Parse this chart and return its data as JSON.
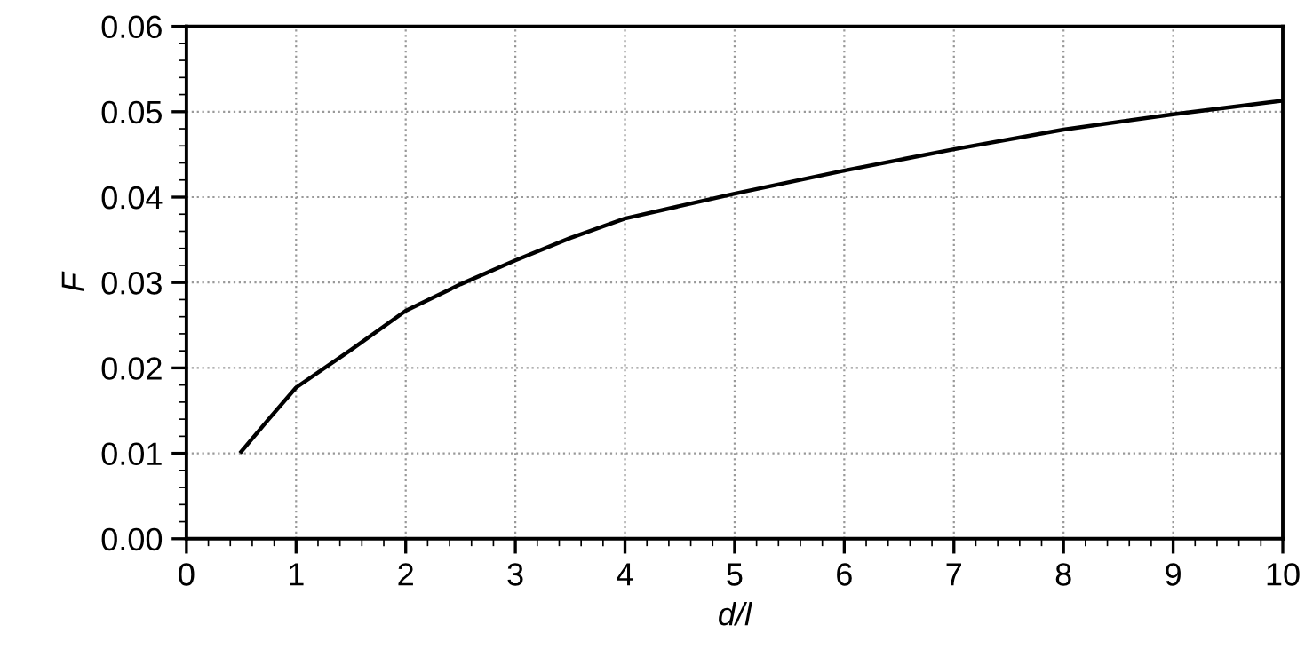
{
  "chart_data": {
    "type": "line",
    "xlabel": "d/l",
    "ylabel": "F",
    "x": [
      0.5,
      0.75,
      1,
      1.5,
      2,
      2.5,
      3,
      3.5,
      4,
      5,
      6,
      7,
      8,
      9,
      10
    ],
    "series": [
      {
        "color": "#000000",
        "values": [
          0.0102,
          0.014,
          0.0177,
          0.0221,
          0.0267,
          0.0298,
          0.0326,
          0.0352,
          0.0375,
          0.0404,
          0.0431,
          0.0456,
          0.0479,
          0.0497,
          0.0513
        ]
      }
    ],
    "xlim": [
      0,
      10
    ],
    "xticks": [
      0,
      1,
      2,
      3,
      4,
      5,
      6,
      7,
      8,
      9,
      10
    ],
    "ylim": [
      0,
      0.06
    ],
    "yticks": [
      {
        "value": 0,
        "label": "0.00"
      },
      {
        "value": 0.01,
        "label": "0.01"
      },
      {
        "value": 0.02,
        "label": "0.02"
      },
      {
        "value": 0.03,
        "label": "0.03"
      },
      {
        "value": 0.04,
        "label": "0.04"
      },
      {
        "value": 0.05,
        "label": "0.05"
      },
      {
        "value": 0.06,
        "label": "0.06"
      }
    ],
    "grid": true,
    "marker": "none",
    "line_style": "solid"
  }
}
